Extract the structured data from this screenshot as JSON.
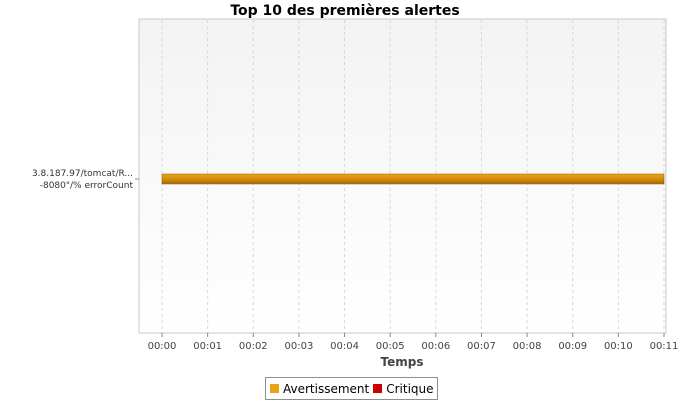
{
  "chart_data": {
    "type": "bar",
    "orientation": "horizontal",
    "title": "Top 10 des premières alertes",
    "xlabel": "Temps",
    "ylabel": "",
    "categories": [
      [
        "3.8.187.97/tomcat/R...",
        "-8080\"/% errorCount"
      ]
    ],
    "x_ticks": [
      "00:00",
      "00:01",
      "00:02",
      "00:03",
      "00:04",
      "00:05",
      "00:06",
      "00:07",
      "00:08",
      "00:09",
      "00:10",
      "00:11"
    ],
    "x_range_minutes": [
      0,
      11
    ],
    "bars": [
      {
        "category_index": 0,
        "start_minute": 0,
        "end_minute": 11,
        "series": "Avertissement"
      }
    ],
    "legend": [
      {
        "name": "Avertissement",
        "color": "#e8a317"
      },
      {
        "name": "Critique",
        "color": "#cc0000"
      }
    ],
    "legend_position": "bottom",
    "grid": true
  }
}
